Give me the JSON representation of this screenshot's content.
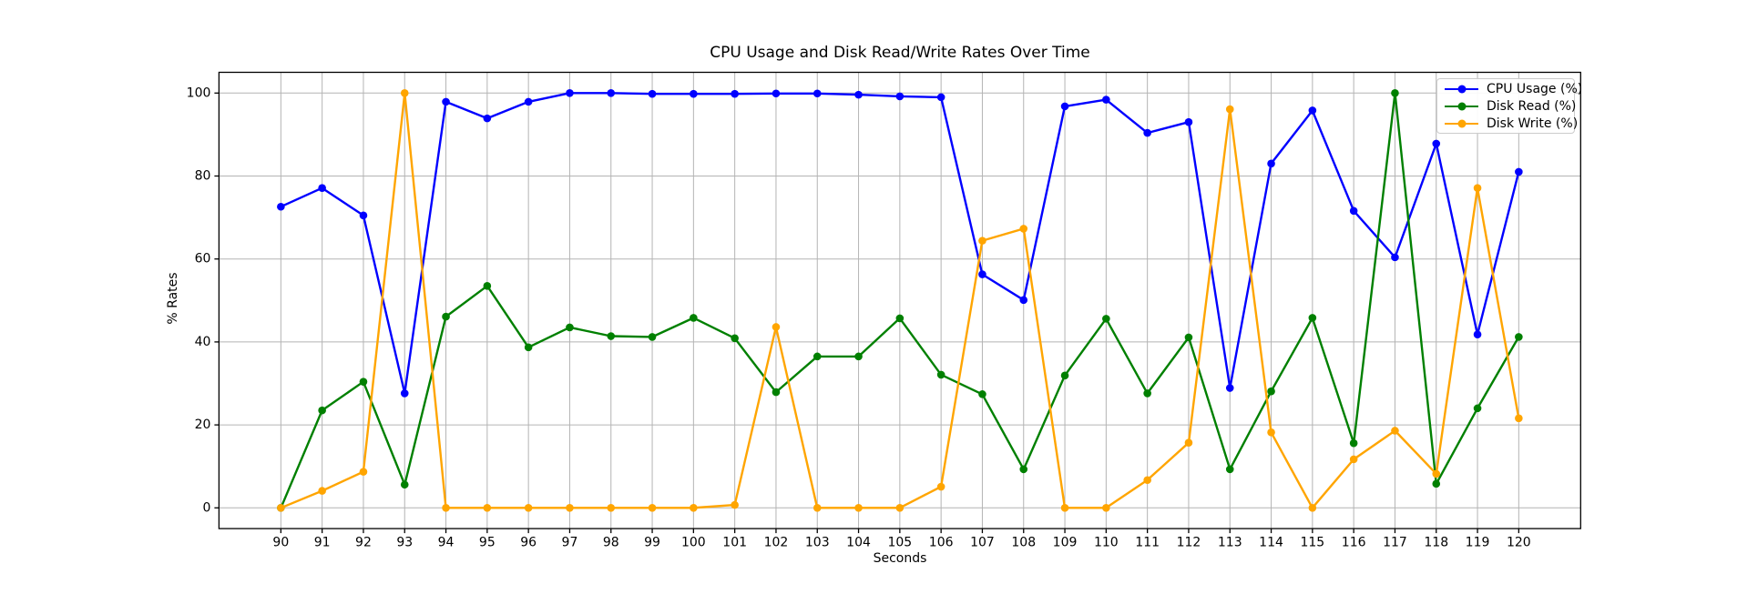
{
  "chart_data": {
    "type": "line",
    "title": "CPU Usage and Disk Read/Write Rates Over Time",
    "xlabel": "Seconds",
    "ylabel": "% Rates",
    "x": [
      90,
      91,
      92,
      93,
      94,
      95,
      96,
      97,
      98,
      99,
      100,
      101,
      102,
      103,
      104,
      105,
      106,
      107,
      108,
      109,
      110,
      111,
      112,
      113,
      114,
      115,
      116,
      117,
      118,
      119,
      120
    ],
    "series": [
      {
        "name": "CPU Usage (%)",
        "color": "#0000ff",
        "marker": "circle",
        "values": [
          72.6,
          77.1,
          70.5,
          27.6,
          97.9,
          93.9,
          97.9,
          100,
          100,
          99.8,
          99.8,
          99.8,
          99.9,
          99.9,
          99.6,
          99.2,
          99.0,
          56.3,
          50.1,
          96.8,
          98.4,
          90.4,
          93.0,
          28.9,
          83.0,
          95.8,
          71.6,
          60.4,
          87.8,
          41.8,
          81.0
        ]
      },
      {
        "name": "Disk Read (%)",
        "color": "#008000",
        "marker": "circle",
        "values": [
          0,
          23.5,
          30.4,
          5.6,
          46.1,
          53.5,
          38.7,
          43.5,
          41.4,
          41.2,
          45.8,
          40.9,
          27.9,
          36.5,
          36.5,
          45.7,
          32.1,
          27.4,
          9.3,
          31.9,
          45.6,
          27.6,
          41.1,
          9.3,
          28.1,
          45.8,
          15.6,
          100,
          5.8,
          24.0,
          41.2
        ]
      },
      {
        "name": "Disk Write (%)",
        "color": "#ffa500",
        "marker": "circle",
        "values": [
          0,
          4.1,
          8.7,
          100,
          0,
          0,
          0,
          0,
          0,
          0,
          0,
          0.7,
          43.6,
          0,
          0,
          0,
          5.1,
          64.4,
          67.3,
          0,
          0,
          6.7,
          15.7,
          96.1,
          18.2,
          0,
          11.7,
          18.6,
          8.2,
          77.1,
          21.6
        ]
      }
    ],
    "xlim": [
      88.5,
      121.5
    ],
    "ylim": [
      -5,
      105
    ],
    "xticks": [
      90,
      91,
      92,
      93,
      94,
      95,
      96,
      97,
      98,
      99,
      100,
      101,
      102,
      103,
      104,
      105,
      106,
      107,
      108,
      109,
      110,
      111,
      112,
      113,
      114,
      115,
      116,
      117,
      118,
      119,
      120
    ],
    "yticks": [
      0,
      20,
      40,
      60,
      80,
      100
    ],
    "grid": true,
    "grid_color": "#b4b4b4",
    "legend_position": "upper right"
  }
}
